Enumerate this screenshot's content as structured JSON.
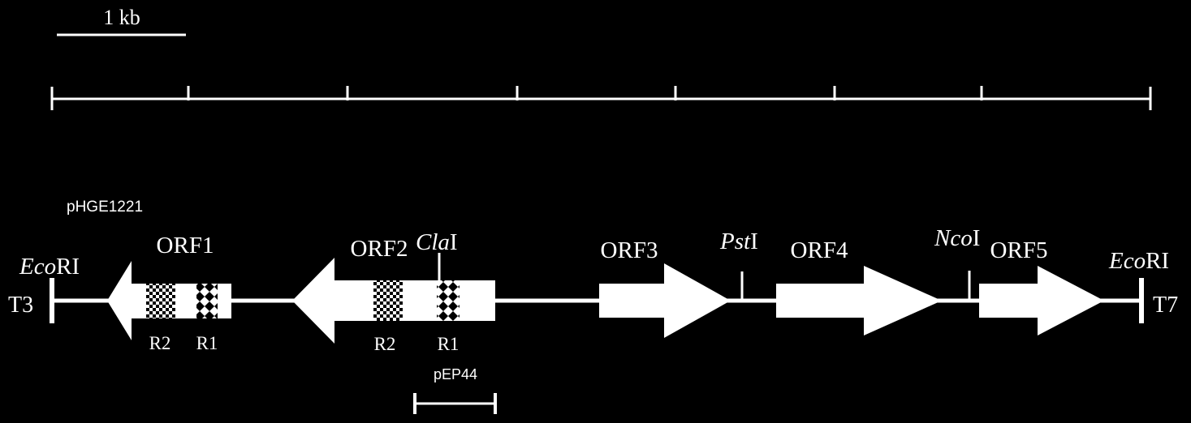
{
  "scale_bar": {
    "label": "1 kb"
  },
  "plasmid_name": "pHGE1221",
  "end_sites": {
    "left": {
      "italic": "Eco",
      "plain": "RI"
    },
    "right": {
      "italic": "Eco",
      "plain": "RI"
    }
  },
  "promoters": {
    "left": "T3",
    "right": "T7"
  },
  "orfs": [
    {
      "label": "ORF1",
      "direction": "left",
      "repeats": [
        "R2",
        "R1"
      ]
    },
    {
      "label": "ORF2",
      "direction": "left",
      "repeats": [
        "R2",
        "R1"
      ]
    },
    {
      "label": "ORF3",
      "direction": "right"
    },
    {
      "label": "ORF4",
      "direction": "right"
    },
    {
      "label": "ORF5",
      "direction": "right"
    }
  ],
  "restriction_sites": [
    {
      "italic": "Cla",
      "plain": "I"
    },
    {
      "italic": "Pst",
      "plain": "I"
    },
    {
      "italic": "Nco",
      "plain": "I"
    }
  ],
  "probe": {
    "label": "pEP44"
  },
  "colors": {
    "background": "#000000",
    "foreground": "#ffffff"
  }
}
